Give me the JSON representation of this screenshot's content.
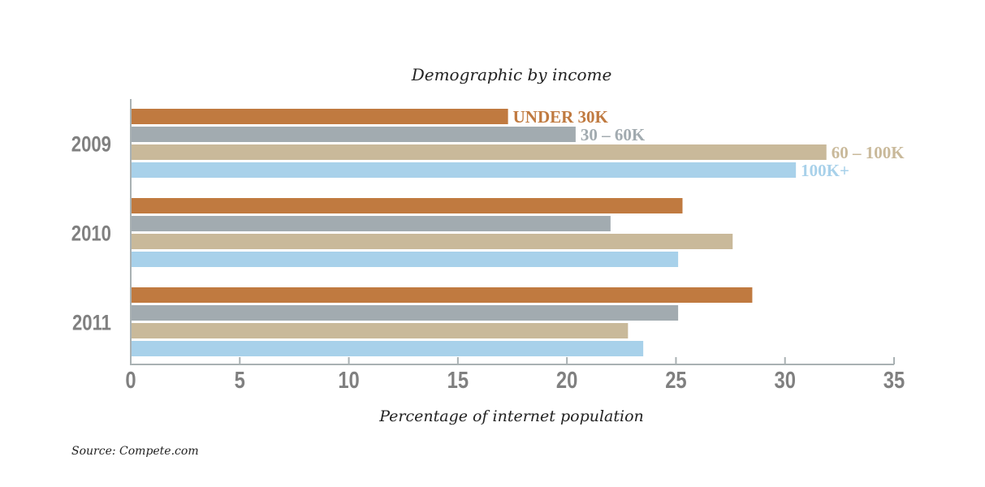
{
  "chart_data": {
    "type": "bar",
    "orientation": "horizontal",
    "title": "Demographic by income",
    "xlabel": "Percentage of internet population",
    "ylabel": "",
    "xlim": [
      0,
      35
    ],
    "xticks": [
      "0",
      "5",
      "10",
      "15",
      "20",
      "25",
      "30",
      "35"
    ],
    "categories": [
      "2009",
      "2010",
      "2011"
    ],
    "series": [
      {
        "name": "UNDER 30K",
        "color": "#c07a40",
        "values": [
          17.3,
          25.3,
          28.5
        ]
      },
      {
        "name": "30 – 60K",
        "color": "#a2abb0",
        "values": [
          20.4,
          22.0,
          25.1
        ]
      },
      {
        "name": "60 – 100K",
        "color": "#c9b99a",
        "values": [
          31.9,
          27.6,
          22.8
        ]
      },
      {
        "name": "100K+",
        "color": "#a8d1ea",
        "values": [
          30.5,
          25.1,
          23.5
        ]
      }
    ],
    "legend_placement": "labels at end of 2009 bars",
    "grid": false
  },
  "source": "Source: Compete.com",
  "colors": {
    "axis": "#a9b1b3",
    "year_label": "#808080",
    "tick_label": "#808080"
  }
}
